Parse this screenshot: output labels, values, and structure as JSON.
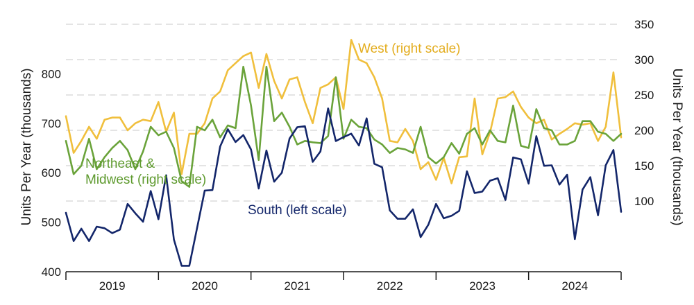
{
  "chart_data": {
    "type": "line",
    "title": "",
    "ylabel_left": "Units Per Year (thousands)",
    "ylabel_right": "Units Per Year (thousands)",
    "left_axis": {
      "ylim": [
        400,
        900
      ],
      "ticks": [
        400,
        500,
        600,
        700,
        800
      ]
    },
    "right_axis": {
      "ylim": [
        0,
        350
      ],
      "ticks": [
        100,
        150,
        200,
        250,
        300,
        350
      ]
    },
    "x_range": [
      2019.0,
      2025.0
    ],
    "year_ticks": [
      2019,
      2020,
      2021,
      2022,
      2023,
      2024
    ],
    "colors": {
      "south": "#13266a",
      "west": "#f0bf3c",
      "northeast_midwest": "#6aa33a",
      "grid": "#c8c8c8"
    },
    "series": [
      {
        "name": "South (left scale)",
        "key": "south",
        "axis": "left",
        "start": 2019.0,
        "values": [
          519,
          462,
          487,
          462,
          491,
          488,
          478,
          485,
          537,
          518,
          501,
          563,
          506,
          595,
          465,
          412,
          412,
          488,
          564,
          565,
          653,
          688,
          662,
          676,
          647,
          568,
          645,
          582,
          600,
          669,
          692,
          694,
          622,
          643,
          730,
          664,
          672,
          679,
          655,
          710,
          618,
          611,
          524,
          507,
          507,
          526,
          470,
          495,
          537,
          508,
          513,
          523,
          603,
          559,
          562,
          584,
          589,
          545,
          631,
          627,
          578,
          674,
          614,
          615,
          576,
          596,
          466,
          566,
          591,
          514,
          615,
          646,
          521
        ]
      },
      {
        "name": "West (right scale)",
        "key": "west",
        "axis": "right",
        "start": 2019.0,
        "values": [
          220,
          168,
          185,
          205,
          188,
          215,
          218,
          218,
          200,
          210,
          215,
          213,
          240,
          198,
          225,
          138,
          195,
          195,
          210,
          245,
          255,
          285,
          295,
          305,
          310,
          260,
          308,
          270,
          245,
          272,
          275,
          240,
          210,
          260,
          265,
          275,
          230,
          328,
          300,
          295,
          275,
          245,
          185,
          183,
          202,
          185,
          145,
          155,
          130,
          161,
          125,
          162,
          163,
          245,
          166,
          197,
          245,
          247,
          255,
          233,
          218,
          210,
          215,
          187,
          195,
          202,
          210,
          208,
          210,
          185,
          205,
          282,
          190
        ]
      },
      {
        "name": "Northeast & Midwest (right scale)",
        "key": "northeast_midwest",
        "axis": "right",
        "start": 2019.0,
        "values": [
          185,
          138,
          150,
          188,
          145,
          162,
          175,
          185,
          172,
          145,
          170,
          205,
          193,
          198,
          175,
          128,
          120,
          205,
          200,
          215,
          190,
          207,
          203,
          290,
          235,
          158,
          290,
          213,
          225,
          205,
          180,
          185,
          183,
          182,
          192,
          275,
          188,
          215,
          205,
          203,
          187,
          180,
          168,
          175,
          173,
          168,
          205,
          162,
          153,
          162,
          182,
          167,
          195,
          203,
          180,
          200,
          185,
          183,
          235,
          178,
          175,
          230,
          203,
          200,
          180,
          180,
          185,
          213,
          213,
          198,
          195,
          185,
          195
        ]
      }
    ]
  }
}
